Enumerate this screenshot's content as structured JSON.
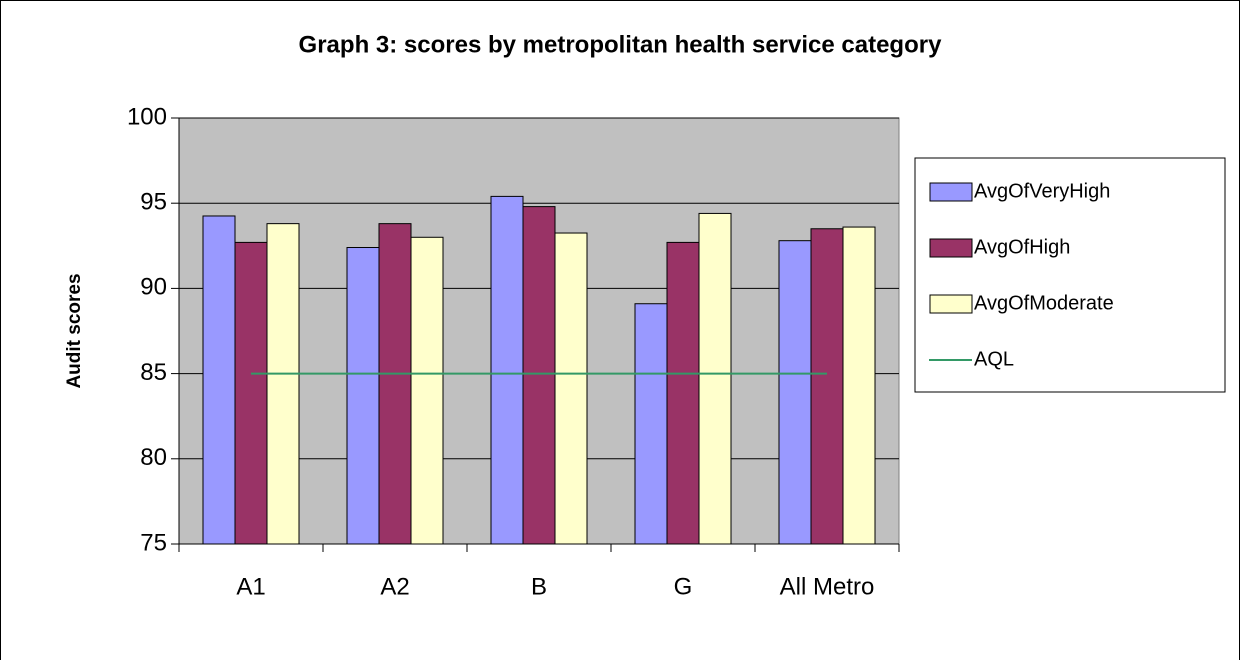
{
  "chart_data": {
    "type": "bar",
    "title": "Graph 3: scores by metropolitan health service category",
    "y_label": "Audit scores",
    "categories": [
      "A1",
      "A2",
      "B",
      "G",
      "All Metro"
    ],
    "series": [
      {
        "name": "AvgOfVeryHigh",
        "color": "#9999ff",
        "values": [
          94.25,
          92.4,
          95.4,
          89.1,
          92.8
        ]
      },
      {
        "name": "AvgOfHigh",
        "color": "#993366",
        "values": [
          92.7,
          93.8,
          94.8,
          92.7,
          93.5
        ]
      },
      {
        "name": "AvgOfModerate",
        "color": "#ffffcc",
        "values": [
          93.8,
          93.0,
          93.25,
          94.4,
          93.6
        ]
      },
      {
        "name": "AQL",
        "type": "line",
        "color": "#339966",
        "values": [
          85,
          85,
          85,
          85,
          85
        ]
      }
    ],
    "ylim": [
      75,
      100
    ],
    "yticks": [
      75,
      80,
      85,
      90,
      95,
      100
    ],
    "grid": true,
    "legend": "right"
  }
}
